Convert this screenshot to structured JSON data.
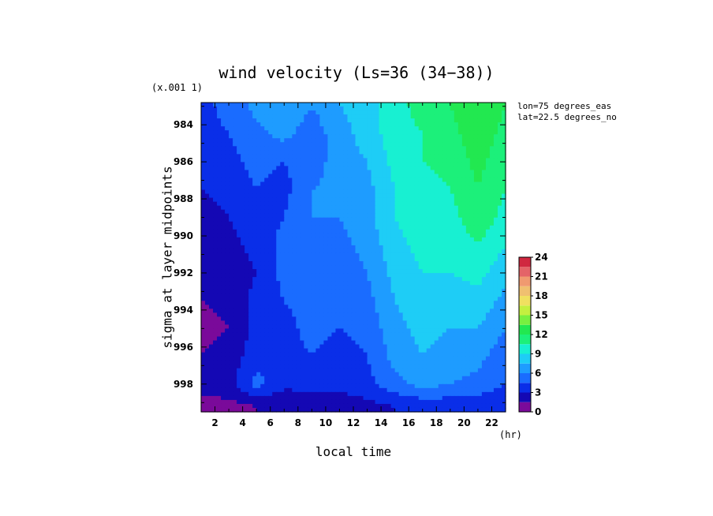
{
  "chart_data": {
    "type": "heatmap",
    "title": "wind velocity (Ls=36 (34−38))",
    "xlabel": "local time",
    "x_unit": "(hr)",
    "ylabel": "sigma at layer midpoints",
    "y_scale_note": "(x.001 1)",
    "annotations": [
      "lon=75 degrees_eas",
      "lat=22.5 degrees_no"
    ],
    "xlim": [
      1,
      23
    ],
    "ylim": [
      999.5,
      982.8
    ],
    "x_ticks": [
      2,
      4,
      6,
      8,
      10,
      12,
      14,
      16,
      18,
      20,
      22
    ],
    "y_ticks": [
      984,
      986,
      988,
      990,
      992,
      994,
      996,
      998
    ],
    "x": [
      1,
      3,
      5,
      7,
      9,
      11,
      13,
      15,
      17,
      19,
      21,
      23
    ],
    "y": [
      983,
      984.5,
      986,
      987.5,
      989,
      990.5,
      992,
      993.5,
      995,
      996.5,
      998,
      999.2
    ],
    "z": [
      [
        4,
        5,
        6.5,
        7.5,
        6,
        7.5,
        8,
        10,
        11,
        12,
        13.5,
        12
      ],
      [
        4,
        4.5,
        5.5,
        6.5,
        5,
        7,
        8,
        10,
        10.5,
        11.5,
        13,
        11.5
      ],
      [
        3.5,
        4,
        5,
        4.5,
        5,
        7,
        7.5,
        9.5,
        10.5,
        11,
        12.5,
        11
      ],
      [
        3,
        3.5,
        4.5,
        4,
        6,
        6.5,
        7,
        9,
        10,
        10.5,
        12,
        10.5
      ],
      [
        2.5,
        3,
        4,
        4.5,
        6,
        6,
        7,
        9,
        10,
        10,
        11.5,
        10
      ],
      [
        2,
        2.5,
        3.5,
        5,
        5.5,
        5.5,
        6.5,
        8.5,
        9.5,
        9.5,
        10.5,
        9
      ],
      [
        1.5,
        2,
        3,
        5,
        5.5,
        5,
        6,
        8,
        9,
        9,
        9.5,
        8
      ],
      [
        1.5,
        2,
        3.5,
        4.5,
        5,
        5,
        5.5,
        7.5,
        8.5,
        8,
        8.5,
        7
      ],
      [
        1,
        1.5,
        3.5,
        4,
        5,
        4.5,
        5,
        7,
        8,
        7.5,
        7.5,
        6
      ],
      [
        1.5,
        2,
        4,
        4,
        4.5,
        4,
        4.5,
        6.5,
        7.5,
        7,
        6.5,
        5
      ],
      [
        2,
        2.5,
        5,
        3.5,
        3.5,
        3.5,
        4,
        5.5,
        6.5,
        6,
        5.5,
        4.5
      ],
      [
        1,
        1,
        1.5,
        1.5,
        2,
        2,
        2.5,
        3,
        3.5,
        3.5,
        3.5,
        3
      ]
    ],
    "colorbar": {
      "levels": [
        0,
        1.5,
        3,
        4.5,
        6,
        7.5,
        9,
        10.5,
        12,
        13.5,
        15,
        16.5,
        18,
        19.5,
        21,
        22.5,
        24
      ],
      "tick_labels": [
        0,
        3,
        6,
        9,
        12,
        15,
        18,
        21,
        24
      ],
      "colors": [
        "#7a0a9a",
        "#1408b4",
        "#0a2ee8",
        "#1a6cff",
        "#1e9cff",
        "#1ecdf6",
        "#18f0d2",
        "#1cf07a",
        "#22e850",
        "#78f040",
        "#c4f040",
        "#f0e060",
        "#f0c070",
        "#f09a70",
        "#e46468",
        "#d02840"
      ]
    }
  }
}
